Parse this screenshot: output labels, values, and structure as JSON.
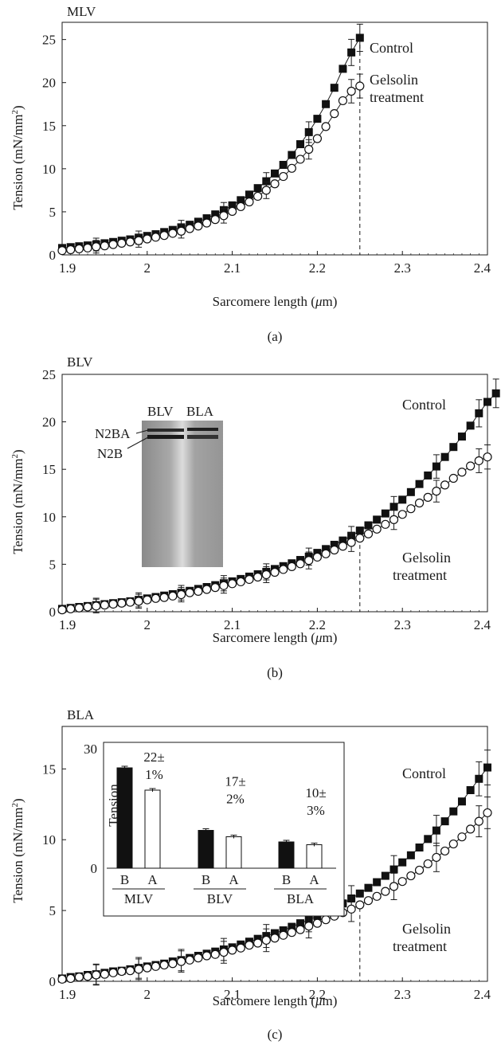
{
  "panels": [
    {
      "id": "a",
      "panel_title": "MLV",
      "caption": "(a)",
      "xlabel_main": "Sarcomere length (",
      "xlabel_mu": "μ",
      "xlabel_tail": "m)",
      "ylabel": "Tension (mN/mm",
      "ylabel_sup": "2",
      "ylabel_tail": ")",
      "control_label": "Control",
      "gelsolin_label_1": "Gelsolin",
      "gelsolin_label_2": "treatment"
    },
    {
      "id": "b",
      "panel_title": "BLV",
      "caption": "(b)",
      "xlabel_main": "Sarcomere length (",
      "xlabel_mu": "μ",
      "xlabel_tail": "m)",
      "ylabel": "Tension (mN/mm",
      "ylabel_sup": "2",
      "ylabel_tail": ")",
      "control_label": "Control",
      "gelsolin_label_1": "Gelsolin",
      "gelsolin_label_2": "treatment",
      "gel_inset": {
        "lane_labels": [
          "BLV",
          "BLA"
        ],
        "band_labels": [
          "N2BA",
          "N2B"
        ]
      }
    },
    {
      "id": "c",
      "panel_title": "BLA",
      "caption": "(c)",
      "xlabel_main": "Sarcomere length (",
      "xlabel_mu": "μ",
      "xlabel_tail": "m)",
      "ylabel": "Tension (mN/mm",
      "ylabel_sup": "2",
      "ylabel_tail": ")",
      "control_label": "Control",
      "gelsolin_label_1": "Gelsolin",
      "gelsolin_label_2": "treatment"
    }
  ],
  "chart_data": [
    {
      "type": "scatter",
      "title": "MLV",
      "xlim": [
        1.9,
        2.4
      ],
      "ylim": [
        0,
        27
      ],
      "xticks": [
        "1.9",
        "2",
        "2.1",
        "2.2",
        "2.3",
        "2.4"
      ],
      "yticks": [
        "0",
        "5",
        "10",
        "15",
        "20",
        "25"
      ],
      "ytick_values": [
        0,
        5,
        10,
        15,
        20,
        25
      ],
      "xtick_values": [
        1.9,
        2.0,
        2.1,
        2.2,
        2.3,
        2.4
      ],
      "dashed_line_x": 2.25,
      "series": [
        {
          "name": "Control",
          "marker": "filled-square",
          "x_start": 1.9,
          "x_step": 0.01,
          "values": [
            0.8,
            0.9,
            1.0,
            1.1,
            1.2,
            1.35,
            1.5,
            1.65,
            1.8,
            2.0,
            2.2,
            2.4,
            2.65,
            2.9,
            3.2,
            3.5,
            3.85,
            4.25,
            4.7,
            5.2,
            5.75,
            6.35,
            7.0,
            7.75,
            8.55,
            9.45,
            10.45,
            11.6,
            12.85,
            14.25,
            15.8,
            17.5,
            19.4,
            21.6,
            23.5,
            25.2
          ]
        },
        {
          "name": "Gelsolin treatment",
          "marker": "open-circle",
          "x_start": 1.9,
          "x_step": 0.01,
          "values": [
            0.5,
            0.6,
            0.7,
            0.8,
            0.95,
            1.05,
            1.2,
            1.35,
            1.5,
            1.65,
            1.85,
            2.05,
            2.25,
            2.5,
            2.75,
            3.05,
            3.35,
            3.7,
            4.1,
            4.55,
            5.05,
            5.6,
            6.15,
            6.8,
            7.5,
            8.25,
            9.1,
            10.05,
            11.1,
            12.25,
            13.5,
            14.9,
            16.4,
            17.9,
            19.0,
            19.6
          ]
        }
      ]
    },
    {
      "type": "scatter",
      "title": "BLV",
      "xlim": [
        1.9,
        2.4
      ],
      "ylim": [
        0,
        25
      ],
      "xticks": [
        "1.9",
        "2",
        "2.1",
        "2.2",
        "2.3",
        "2.4"
      ],
      "yticks": [
        "0",
        "5",
        "10",
        "15",
        "20",
        "25"
      ],
      "ytick_values": [
        0,
        5,
        10,
        15,
        20,
        25
      ],
      "xtick_values": [
        1.9,
        2.0,
        2.1,
        2.2,
        2.3,
        2.4
      ],
      "dashed_line_x": 2.25,
      "series": [
        {
          "name": "Control",
          "marker": "filled-square",
          "x_start": 1.9,
          "x_step": 0.01,
          "values": [
            0.3,
            0.4,
            0.5,
            0.6,
            0.7,
            0.8,
            0.9,
            1.0,
            1.1,
            1.25,
            1.4,
            1.55,
            1.7,
            1.85,
            2.0,
            2.2,
            2.4,
            2.6,
            2.8,
            3.0,
            3.2,
            3.45,
            3.7,
            3.95,
            4.2,
            4.5,
            4.8,
            5.1,
            5.45,
            5.8,
            6.2,
            6.6,
            7.05,
            7.5,
            8.0,
            8.55,
            9.1,
            9.7,
            10.35,
            11.05,
            11.8,
            12.6,
            13.45,
            14.35,
            15.3,
            16.3,
            17.35,
            18.45,
            19.6,
            20.9,
            22.1,
            23.0
          ]
        },
        {
          "name": "Gelsolin treatment",
          "marker": "open-circle",
          "x_start": 1.9,
          "x_step": 0.01,
          "values": [
            0.2,
            0.3,
            0.4,
            0.5,
            0.6,
            0.7,
            0.8,
            0.9,
            1.0,
            1.1,
            1.25,
            1.4,
            1.5,
            1.65,
            1.8,
            2.0,
            2.15,
            2.35,
            2.55,
            2.75,
            2.95,
            3.15,
            3.4,
            3.65,
            3.9,
            4.15,
            4.45,
            4.75,
            5.05,
            5.4,
            5.75,
            6.1,
            6.5,
            6.9,
            7.3,
            7.75,
            8.2,
            8.7,
            9.2,
            9.7,
            10.25,
            10.85,
            11.45,
            12.05,
            12.7,
            13.35,
            14.05,
            14.7,
            15.35,
            15.9,
            16.3
          ]
        }
      ]
    },
    {
      "type": "scatter",
      "title": "BLA",
      "xlim": [
        1.9,
        2.4
      ],
      "ylim": [
        0,
        18
      ],
      "xticks": [
        "1.9",
        "2",
        "2.1",
        "2.2",
        "2.3",
        "2.4"
      ],
      "yticks": [
        "0",
        "5",
        "10",
        "15"
      ],
      "ytick_values": [
        0,
        5,
        10,
        15
      ],
      "xtick_values": [
        1.9,
        2.0,
        2.1,
        2.2,
        2.3,
        2.4
      ],
      "dashed_line_x": 2.25,
      "series": [
        {
          "name": "Control",
          "marker": "filled-square",
          "x_start": 1.9,
          "x_step": 0.01,
          "values": [
            0.2,
            0.3,
            0.35,
            0.45,
            0.5,
            0.6,
            0.7,
            0.75,
            0.85,
            0.95,
            1.05,
            1.15,
            1.25,
            1.4,
            1.5,
            1.65,
            1.8,
            1.95,
            2.1,
            2.25,
            2.4,
            2.6,
            2.8,
            3.0,
            3.2,
            3.4,
            3.6,
            3.85,
            4.1,
            4.35,
            4.6,
            4.9,
            5.2,
            5.5,
            5.85,
            6.2,
            6.6,
            7.0,
            7.45,
            7.9,
            8.4,
            8.9,
            9.45,
            10.05,
            10.65,
            11.3,
            12.0,
            12.7,
            13.5,
            14.3,
            15.1
          ]
        },
        {
          "name": "Gelsolin treatment",
          "marker": "open-circle",
          "x_start": 1.9,
          "x_step": 0.01,
          "values": [
            0.15,
            0.2,
            0.3,
            0.35,
            0.45,
            0.5,
            0.6,
            0.7,
            0.75,
            0.85,
            0.95,
            1.05,
            1.15,
            1.25,
            1.4,
            1.5,
            1.65,
            1.8,
            1.9,
            2.05,
            2.2,
            2.35,
            2.55,
            2.7,
            2.9,
            3.05,
            3.25,
            3.45,
            3.65,
            3.9,
            4.1,
            4.35,
            4.6,
            4.85,
            5.1,
            5.4,
            5.7,
            6.0,
            6.35,
            6.7,
            7.05,
            7.45,
            7.85,
            8.3,
            8.75,
            9.2,
            9.7,
            10.2,
            10.75,
            11.3,
            11.9
          ]
        }
      ],
      "inset": {
        "type": "bar",
        "ylabel": "Tension",
        "ylim": [
          0,
          30
        ],
        "yticks": [
          "0",
          "",
          "30"
        ],
        "ytick_values": [
          0,
          15,
          30
        ],
        "groups": [
          {
            "name": "MLV",
            "bars": [
              {
                "label": "B",
                "value": 25.2,
                "fill": "#111111"
              },
              {
                "label": "A",
                "value": 19.6,
                "fill": "#ffffff"
              }
            ],
            "annotation_1": "22±",
            "annotation_2": "1%"
          },
          {
            "name": "BLV",
            "bars": [
              {
                "label": "B",
                "value": 9.5,
                "fill": "#111111"
              },
              {
                "label": "A",
                "value": 7.9,
                "fill": "#ffffff"
              }
            ],
            "annotation_1": "17±",
            "annotation_2": "2%"
          },
          {
            "name": "BLA",
            "bars": [
              {
                "label": "B",
                "value": 6.6,
                "fill": "#111111"
              },
              {
                "label": "A",
                "value": 5.9,
                "fill": "#ffffff"
              }
            ],
            "annotation_1": "10±",
            "annotation_2": "3%"
          }
        ]
      }
    }
  ]
}
